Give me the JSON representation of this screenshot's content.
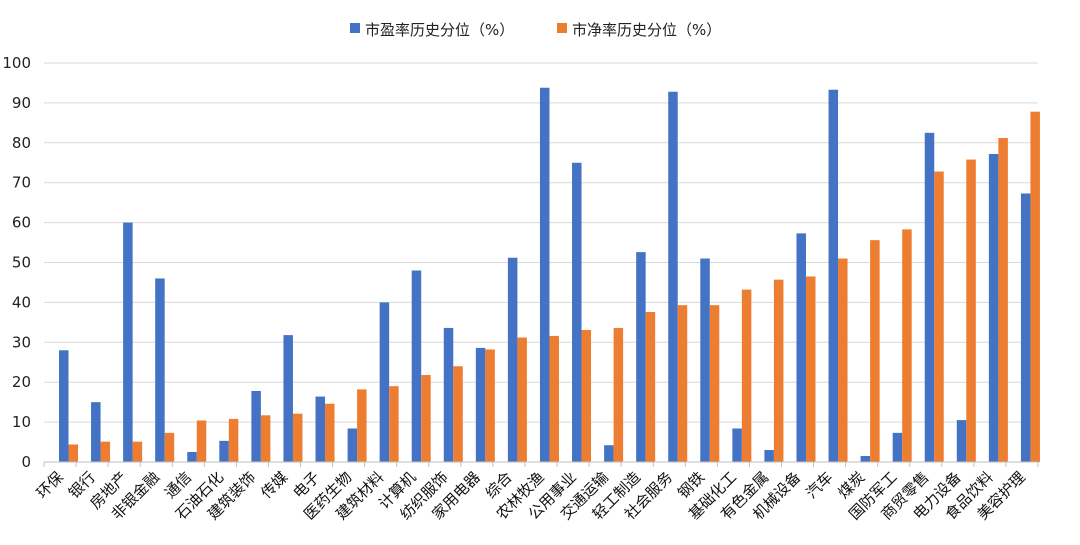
{
  "chart_data": {
    "type": "bar",
    "categories": [
      "环保",
      "银行",
      "房地产",
      "非银金融",
      "通信",
      "石油石化",
      "建筑装饰",
      "传媒",
      "电子",
      "医药生物",
      "建筑材料",
      "计算机",
      "纺织服饰",
      "家用电器",
      "综合",
      "农林牧渔",
      "公用事业",
      "交通运输",
      "轻工制造",
      "社会服务",
      "钢铁",
      "基础化工",
      "有色金属",
      "机械设备",
      "汽车",
      "煤炭",
      "国防军工",
      "商贸零售",
      "电力设备",
      "食品饮料",
      "美容护理"
    ],
    "series": [
      {
        "name": "市盈率历史分位（%）",
        "color": "#4472c4",
        "values": [
          28,
          15,
          60,
          46,
          2.5,
          5.3,
          17.8,
          31.8,
          16.4,
          8.4,
          40,
          48,
          33.6,
          28.6,
          51.2,
          93.8,
          75,
          4.2,
          52.6,
          92.8,
          51,
          8.4,
          3,
          57.3,
          93.3,
          1.5,
          7.3,
          82.5,
          10.5,
          77.2,
          67.3
        ]
      },
      {
        "name": "市净率历史分位（%）",
        "color": "#ed7d31",
        "values": [
          4.4,
          5.1,
          5.1,
          7.3,
          10.4,
          10.8,
          11.7,
          12.1,
          14.6,
          18.2,
          19,
          21.8,
          24,
          28.2,
          31.2,
          31.6,
          33.1,
          33.6,
          37.6,
          39.3,
          39.3,
          43.2,
          45.7,
          46.5,
          51,
          55.6,
          58.3,
          72.8,
          75.8,
          81.2,
          87.8
        ]
      }
    ],
    "ylim": [
      0,
      100
    ],
    "yticks": [
      "0",
      "10",
      "20",
      "30",
      "40",
      "50",
      "60",
      "70",
      "80",
      "90",
      "100"
    ],
    "grid": true,
    "legend_position": "top-center",
    "xlabel": "",
    "ylabel": "",
    "title": ""
  }
}
